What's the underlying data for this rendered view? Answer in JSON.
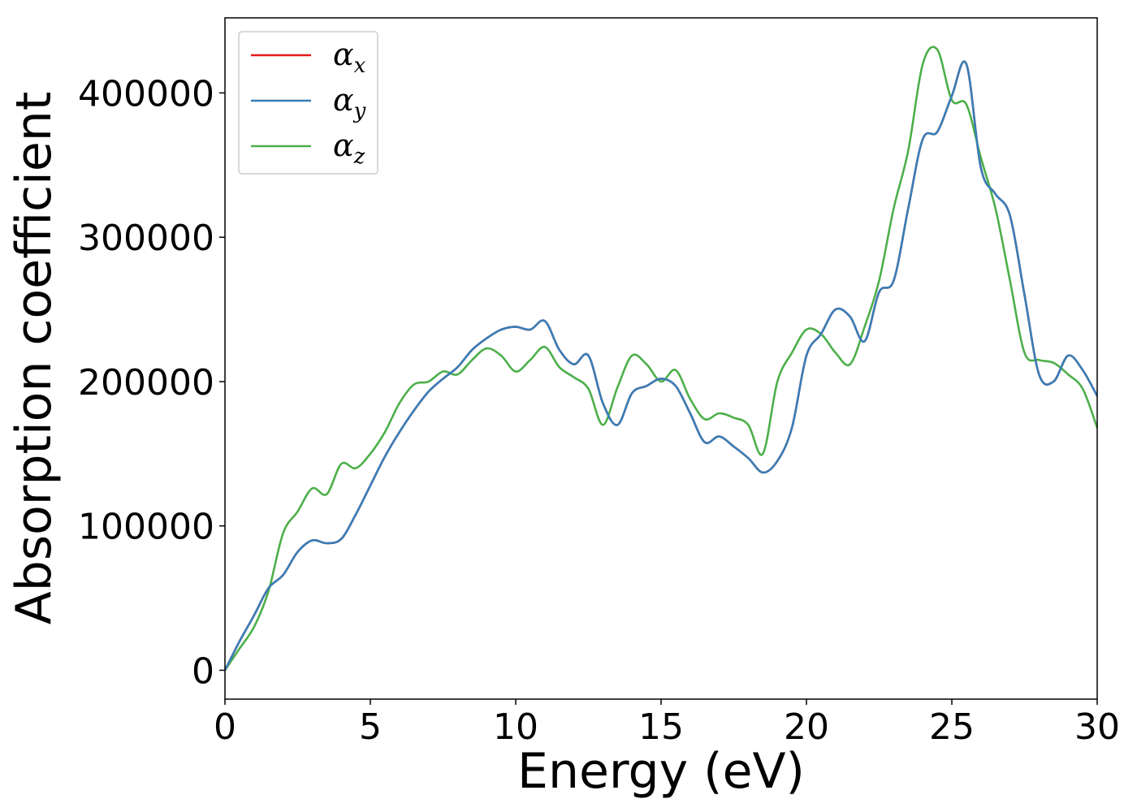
{
  "chart_data": {
    "type": "line",
    "title": "",
    "xlabel": "Energy (eV)",
    "ylabel": "Absorption coefficient",
    "xlim": [
      0,
      30
    ],
    "ylim": [
      -20000,
      452000
    ],
    "xticks": [
      0,
      5,
      10,
      15,
      20,
      25,
      30
    ],
    "xtick_labels": [
      "0",
      "5",
      "10",
      "15",
      "20",
      "25",
      "30"
    ],
    "yticks": [
      0,
      100000,
      200000,
      300000,
      400000
    ],
    "ytick_labels": [
      "0",
      "100000",
      "200000",
      "300000",
      "400000"
    ],
    "grid": false,
    "legend": {
      "placement": "top-left",
      "entries": [
        {
          "symbol": "α",
          "subscript": "x",
          "color": "#e41a1c"
        },
        {
          "symbol": "α",
          "subscript": "y",
          "color": "#377eb8"
        },
        {
          "symbol": "α",
          "subscript": "z",
          "color": "#4daf4a"
        }
      ]
    },
    "series": [
      {
        "key": "alpha_x",
        "color": "#e41a1c",
        "x": [
          0,
          0.5,
          1,
          1.5,
          2,
          2.5,
          3,
          3.5,
          4,
          4.5,
          5,
          5.5,
          6,
          6.5,
          7,
          7.5,
          8,
          8.5,
          9,
          9.5,
          10,
          10.5,
          11,
          11.5,
          12,
          12.5,
          13,
          13.5,
          14,
          14.5,
          15,
          15.5,
          16,
          16.5,
          17,
          17.5,
          18,
          18.5,
          19,
          19.5,
          20,
          20.5,
          21,
          21.5,
          22,
          22.5,
          23,
          23.5,
          24,
          24.5,
          25,
          25.5,
          26,
          26.5,
          27,
          27.5,
          28,
          28.5,
          29,
          29.5,
          30
        ],
        "y": [
          0,
          20000,
          38000,
          57000,
          66000,
          82000,
          90000,
          88000,
          91000,
          108000,
          128000,
          148000,
          165000,
          180000,
          193000,
          202000,
          210000,
          222000,
          230000,
          236000,
          238000,
          236000,
          242000,
          222000,
          212000,
          218000,
          185000,
          170000,
          192000,
          197000,
          202000,
          197000,
          178000,
          158000,
          162000,
          155000,
          147000,
          137000,
          145000,
          168000,
          218000,
          233000,
          250000,
          245000,
          228000,
          262000,
          270000,
          320000,
          368000,
          373000,
          398000,
          420000,
          348000,
          330000,
          315000,
          260000,
          205000,
          200000,
          218000,
          208000,
          190000
        ]
      },
      {
        "key": "alpha_y",
        "color": "#377eb8",
        "x": [
          0,
          0.5,
          1,
          1.5,
          2,
          2.5,
          3,
          3.5,
          4,
          4.5,
          5,
          5.5,
          6,
          6.5,
          7,
          7.5,
          8,
          8.5,
          9,
          9.5,
          10,
          10.5,
          11,
          11.5,
          12,
          12.5,
          13,
          13.5,
          14,
          14.5,
          15,
          15.5,
          16,
          16.5,
          17,
          17.5,
          18,
          18.5,
          19,
          19.5,
          20,
          20.5,
          21,
          21.5,
          22,
          22.5,
          23,
          23.5,
          24,
          24.5,
          25,
          25.5,
          26,
          26.5,
          27,
          27.5,
          28,
          28.5,
          29,
          29.5,
          30
        ],
        "y": [
          0,
          20000,
          38000,
          57000,
          66000,
          82000,
          90000,
          88000,
          91000,
          108000,
          128000,
          148000,
          165000,
          180000,
          193000,
          202000,
          210000,
          222000,
          230000,
          236000,
          238000,
          236000,
          242000,
          222000,
          212000,
          218000,
          185000,
          170000,
          192000,
          197000,
          202000,
          197000,
          178000,
          158000,
          162000,
          155000,
          147000,
          137000,
          145000,
          168000,
          218000,
          233000,
          250000,
          245000,
          228000,
          262000,
          270000,
          320000,
          368000,
          373000,
          398000,
          420000,
          348000,
          330000,
          315000,
          260000,
          205000,
          200000,
          218000,
          208000,
          190000
        ]
      },
      {
        "key": "alpha_z",
        "color": "#4daf4a",
        "x": [
          0,
          0.5,
          1,
          1.5,
          2,
          2.5,
          3,
          3.5,
          4,
          4.5,
          5,
          5.5,
          6,
          6.5,
          7,
          7.5,
          8,
          8.5,
          9,
          9.5,
          10,
          10.5,
          11,
          11.5,
          12,
          12.5,
          13,
          13.5,
          14,
          14.5,
          15,
          15.5,
          16,
          16.5,
          17,
          17.5,
          18,
          18.5,
          19,
          19.5,
          20,
          20.5,
          21,
          21.5,
          22,
          22.5,
          23,
          23.5,
          24,
          24.5,
          25,
          25.5,
          26,
          26.5,
          27,
          27.5,
          28,
          28.5,
          29,
          29.5,
          30
        ],
        "y": [
          0,
          15000,
          30000,
          55000,
          95000,
          110000,
          126000,
          122000,
          143000,
          140000,
          150000,
          165000,
          185000,
          198000,
          200000,
          207000,
          205000,
          215000,
          223000,
          218000,
          207000,
          215000,
          224000,
          210000,
          203000,
          195000,
          170000,
          196000,
          218000,
          212000,
          200000,
          208000,
          188000,
          174000,
          178000,
          175000,
          170000,
          150000,
          200000,
          220000,
          236000,
          233000,
          220000,
          212000,
          238000,
          270000,
          320000,
          360000,
          420000,
          430000,
          395000,
          392000,
          355000,
          320000,
          270000,
          220000,
          215000,
          213000,
          205000,
          195000,
          168000
        ]
      }
    ]
  }
}
